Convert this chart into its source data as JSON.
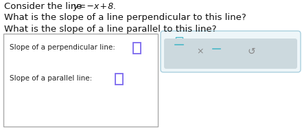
{
  "line1_normal": "Consider the line ",
  "line1_math": "y = −x + 8.",
  "line2": "What is the slope of a line perpendicular to this line?",
  "line3": "What is the slope of a line parallel to this line?",
  "box_left_label1": "Slope of a perpendicular line:",
  "box_left_label2": "Slope of a parallel line:",
  "box_bg": "#ffffff",
  "box_border": "#aaaaaa",
  "input_border": "#7b68ee",
  "right_box_bg": "#eef6f9",
  "right_box_border": "#aad0df",
  "fraction_color": "#4ab8c8",
  "frac_sq_border": "#aaaaaa",
  "bottom_strip_bg": "#dde8ec",
  "symbol_color": "#888888",
  "background": "#ffffff",
  "text_fontsize": 9.5,
  "small_fontsize": 7.5
}
